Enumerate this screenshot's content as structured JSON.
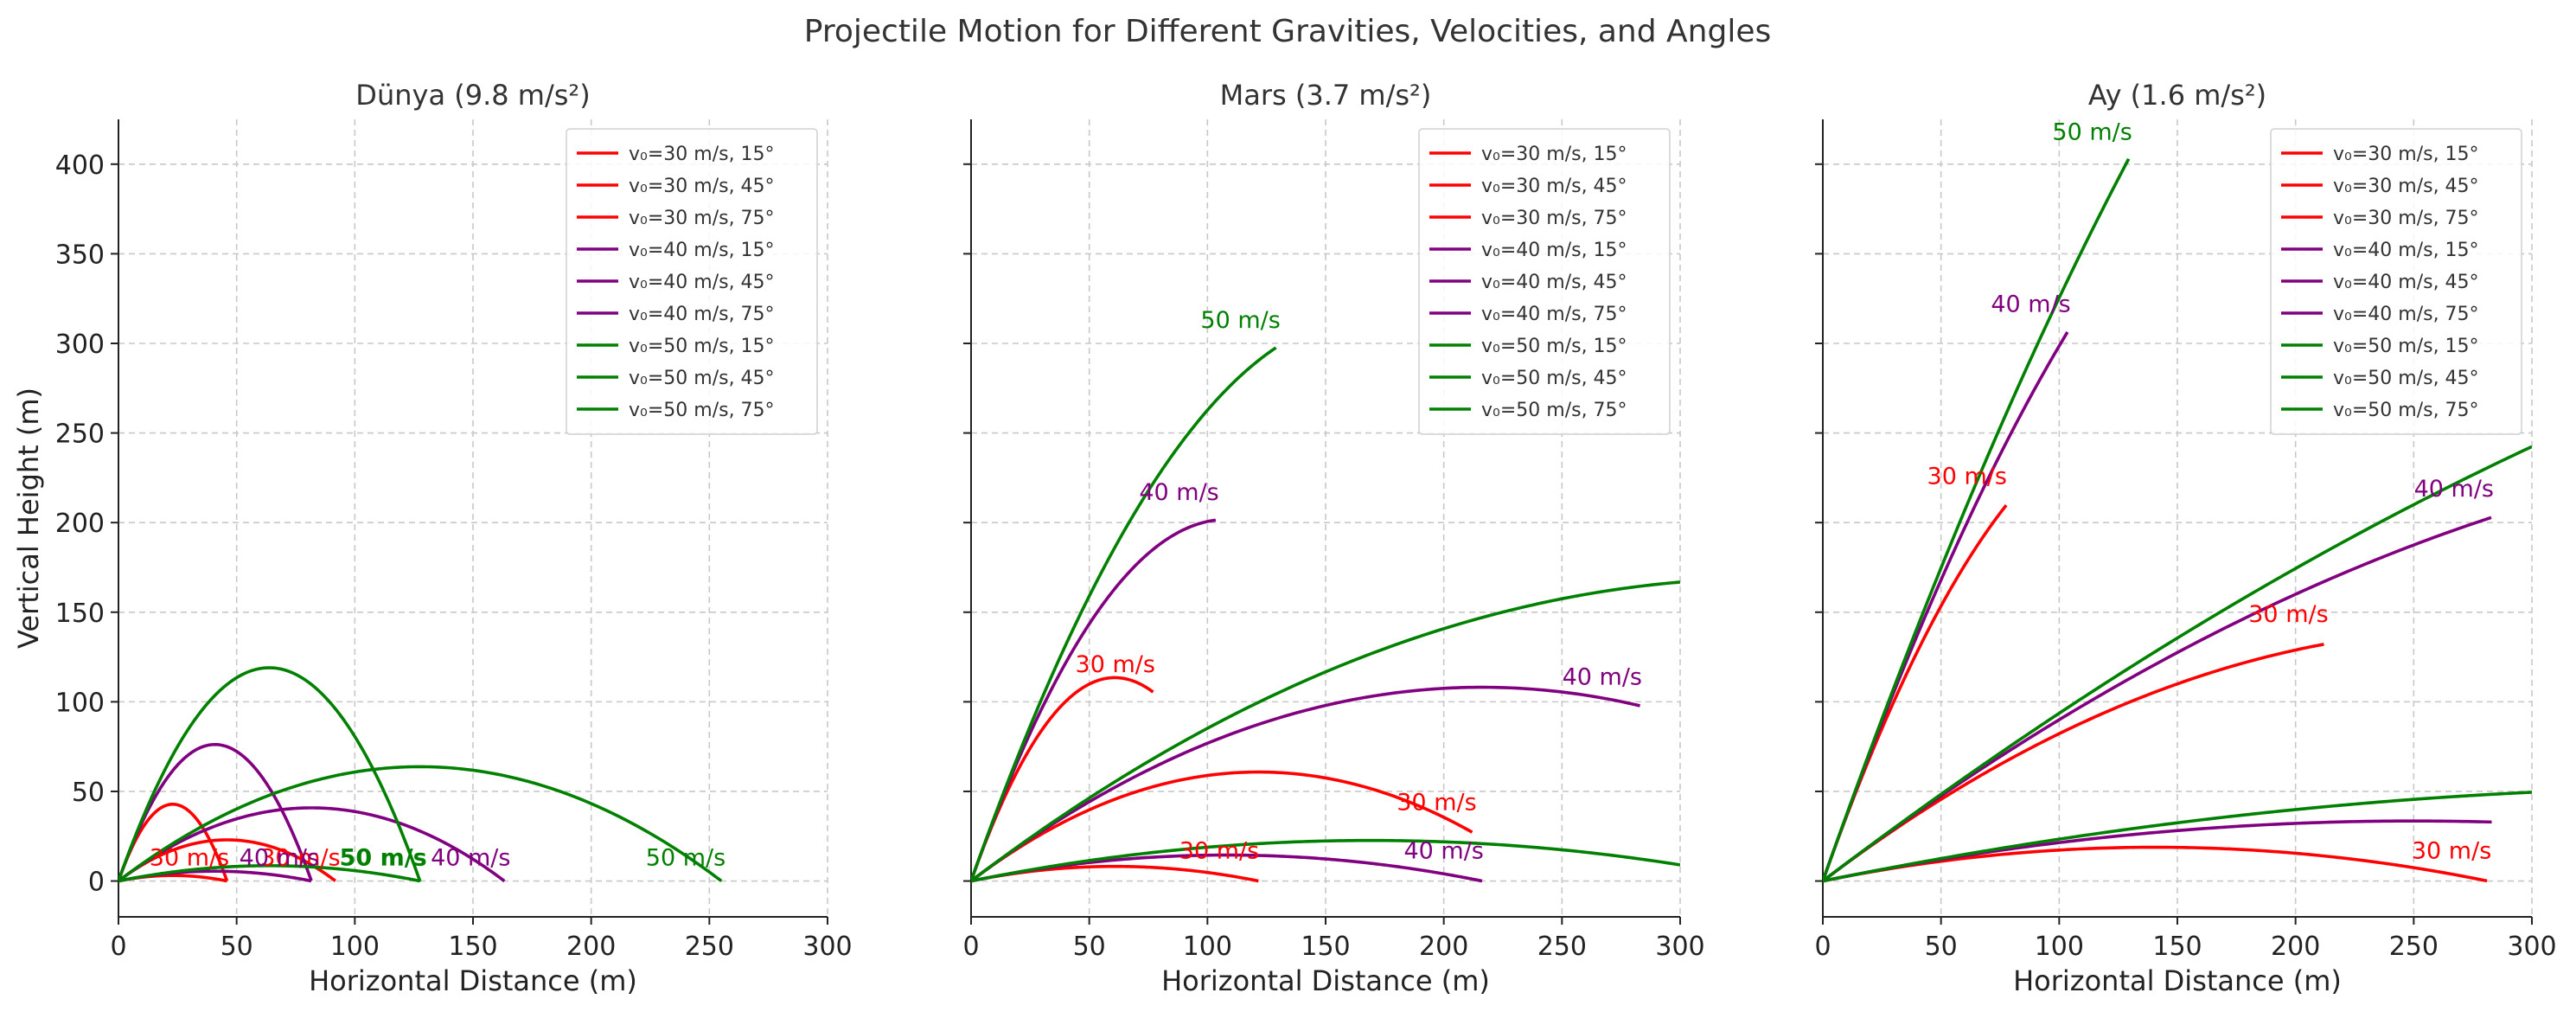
{
  "suptitle": "Projectile Motion for Different Gravities, Velocities, and Angles",
  "colors": {
    "30": "#ff0000",
    "40": "#800080",
    "50": "#008000"
  },
  "chart_data": [
    {
      "type": "line",
      "title": "Dünya (9.8 m/s²)",
      "gravity": 9.8,
      "xlabel": "Horizontal Distance (m)",
      "ylabel": "Vertical Height (m)",
      "xlim": [
        0,
        300
      ],
      "ylim": [
        -20,
        425
      ],
      "xticks": [
        0,
        50,
        100,
        150,
        200,
        250,
        300
      ],
      "yticks": [
        0,
        50,
        100,
        150,
        200,
        250,
        300,
        350,
        400
      ],
      "grid": true,
      "legend_position": "top-right",
      "series": [
        {
          "name": "v₀=30 m/s, 15°",
          "v0": 30,
          "angle": 15,
          "color": "#ff0000",
          "max_x": 45.9
        },
        {
          "name": "v₀=30 m/s, 45°",
          "v0": 30,
          "angle": 45,
          "color": "#ff0000",
          "max_x": 91.8
        },
        {
          "name": "v₀=30 m/s, 75°",
          "v0": 30,
          "angle": 75,
          "color": "#ff0000",
          "max_x": 45.9
        },
        {
          "name": "v₀=40 m/s, 15°",
          "v0": 40,
          "angle": 15,
          "color": "#800080",
          "max_x": 81.6
        },
        {
          "name": "v₀=40 m/s, 45°",
          "v0": 40,
          "angle": 45,
          "color": "#800080",
          "max_x": 163.3
        },
        {
          "name": "v₀=40 m/s, 75°",
          "v0": 40,
          "angle": 75,
          "color": "#800080",
          "max_x": 81.6
        },
        {
          "name": "v₀=50 m/s, 15°",
          "v0": 50,
          "angle": 15,
          "color": "#008000",
          "max_x": 127.6
        },
        {
          "name": "v₀=50 m/s, 45°",
          "v0": 50,
          "angle": 45,
          "color": "#008000",
          "max_x": 255.1
        },
        {
          "name": "v₀=50 m/s, 75°",
          "v0": 50,
          "angle": 75,
          "color": "#008000",
          "max_x": 127.6
        }
      ],
      "annotations": [
        {
          "text": "30 m/s",
          "x": 30,
          "y": 13,
          "color": "#ff0000",
          "bold": false
        },
        {
          "text": "30 m/s",
          "x": 77,
          "y": 13,
          "color": "#ff0000",
          "bold": false
        },
        {
          "text": "40 m/s",
          "x": 68,
          "y": 13,
          "color": "#800080",
          "bold": false
        },
        {
          "text": "50 m/s",
          "x": 112,
          "y": 13,
          "color": "#008000",
          "bold": true
        },
        {
          "text": "40 m/s",
          "x": 149,
          "y": 13,
          "color": "#800080",
          "bold": false
        },
        {
          "text": "50 m/s",
          "x": 240,
          "y": 13,
          "color": "#008000",
          "bold": false
        }
      ]
    },
    {
      "type": "line",
      "title": "Mars (3.7 m/s²)",
      "gravity": 3.7,
      "xlabel": "Horizontal Distance (m)",
      "ylabel": "",
      "xlim": [
        0,
        300
      ],
      "ylim": [
        -20,
        425
      ],
      "xticks": [
        0,
        50,
        100,
        150,
        200,
        250,
        300
      ],
      "yticks": [
        0,
        50,
        100,
        150,
        200,
        250,
        300,
        350,
        400
      ],
      "grid": true,
      "legend_position": "top-right",
      "series": [
        {
          "name": "v₀=30 m/s, 15°",
          "v0": 30,
          "angle": 15,
          "color": "#ff0000",
          "max_x": 121.6
        },
        {
          "name": "v₀=30 m/s, 45°",
          "v0": 30,
          "angle": 45,
          "color": "#ff0000",
          "max_x": 212
        },
        {
          "name": "v₀=30 m/s, 75°",
          "v0": 30,
          "angle": 75,
          "color": "#ff0000",
          "max_x": 77
        },
        {
          "name": "v₀=40 m/s, 15°",
          "v0": 40,
          "angle": 15,
          "color": "#800080",
          "max_x": 216.2
        },
        {
          "name": "v₀=40 m/s, 45°",
          "v0": 40,
          "angle": 45,
          "color": "#800080",
          "max_x": 283
        },
        {
          "name": "v₀=40 m/s, 75°",
          "v0": 40,
          "angle": 75,
          "color": "#800080",
          "max_x": 103.5
        },
        {
          "name": "v₀=50 m/s, 15°",
          "v0": 50,
          "angle": 15,
          "color": "#008000",
          "max_x": 300
        },
        {
          "name": "v₀=50 m/s, 45°",
          "v0": 50,
          "angle": 45,
          "color": "#008000",
          "max_x": 300
        },
        {
          "name": "v₀=50 m/s, 75°",
          "v0": 50,
          "angle": 75,
          "color": "#008000",
          "max_x": 129
        }
      ],
      "annotations": [
        {
          "text": "50 m/s",
          "x": 114,
          "y": 313,
          "color": "#008000",
          "bold": false
        },
        {
          "text": "40 m/s",
          "x": 88,
          "y": 217,
          "color": "#800080",
          "bold": false
        },
        {
          "text": "30 m/s",
          "x": 61,
          "y": 121,
          "color": "#ff0000",
          "bold": false
        },
        {
          "text": "40 m/s",
          "x": 267,
          "y": 114,
          "color": "#800080",
          "bold": false
        },
        {
          "text": "30 m/s",
          "x": 197,
          "y": 44,
          "color": "#ff0000",
          "bold": false
        },
        {
          "text": "30 m/s",
          "x": 105,
          "y": 17,
          "color": "#ff0000",
          "bold": false
        },
        {
          "text": "40 m/s",
          "x": 200,
          "y": 17,
          "color": "#800080",
          "bold": false
        }
      ]
    },
    {
      "type": "line",
      "title": "Ay (1.6 m/s²)",
      "gravity": 1.6,
      "xlabel": "Horizontal Distance (m)",
      "ylabel": "",
      "xlim": [
        0,
        300
      ],
      "ylim": [
        -20,
        425
      ],
      "xticks": [
        0,
        50,
        100,
        150,
        200,
        250,
        300
      ],
      "yticks": [
        0,
        50,
        100,
        150,
        200,
        250,
        300,
        350,
        400
      ],
      "grid": true,
      "legend_position": "top-right",
      "series": [
        {
          "name": "v₀=30 m/s, 15°",
          "v0": 30,
          "angle": 15,
          "color": "#ff0000",
          "max_x": 281
        },
        {
          "name": "v₀=30 m/s, 45°",
          "v0": 30,
          "angle": 45,
          "color": "#ff0000",
          "max_x": 212
        },
        {
          "name": "v₀=30 m/s, 75°",
          "v0": 30,
          "angle": 75,
          "color": "#ff0000",
          "max_x": 77.6
        },
        {
          "name": "v₀=40 m/s, 15°",
          "v0": 40,
          "angle": 15,
          "color": "#800080",
          "max_x": 283
        },
        {
          "name": "v₀=40 m/s, 45°",
          "v0": 40,
          "angle": 45,
          "color": "#800080",
          "max_x": 282.8
        },
        {
          "name": "v₀=40 m/s, 75°",
          "v0": 40,
          "angle": 75,
          "color": "#800080",
          "max_x": 103.5
        },
        {
          "name": "v₀=50 m/s, 15°",
          "v0": 50,
          "angle": 15,
          "color": "#008000",
          "max_x": 300
        },
        {
          "name": "v₀=50 m/s, 45°",
          "v0": 50,
          "angle": 45,
          "color": "#008000",
          "max_x": 300
        },
        {
          "name": "v₀=50 m/s, 75°",
          "v0": 50,
          "angle": 75,
          "color": "#008000",
          "max_x": 129.4
        }
      ],
      "annotations": [
        {
          "text": "50 m/s",
          "x": 114,
          "y": 418,
          "color": "#008000",
          "bold": false
        },
        {
          "text": "40 m/s",
          "x": 88,
          "y": 322,
          "color": "#800080",
          "bold": false
        },
        {
          "text": "30 m/s",
          "x": 61,
          "y": 226,
          "color": "#ff0000",
          "bold": false
        },
        {
          "text": "40 m/s",
          "x": 267,
          "y": 219,
          "color": "#800080",
          "bold": false
        },
        {
          "text": "30 m/s",
          "x": 197,
          "y": 149,
          "color": "#ff0000",
          "bold": false
        },
        {
          "text": "30 m/s",
          "x": 266,
          "y": 17,
          "color": "#ff0000",
          "bold": false
        }
      ]
    }
  ]
}
